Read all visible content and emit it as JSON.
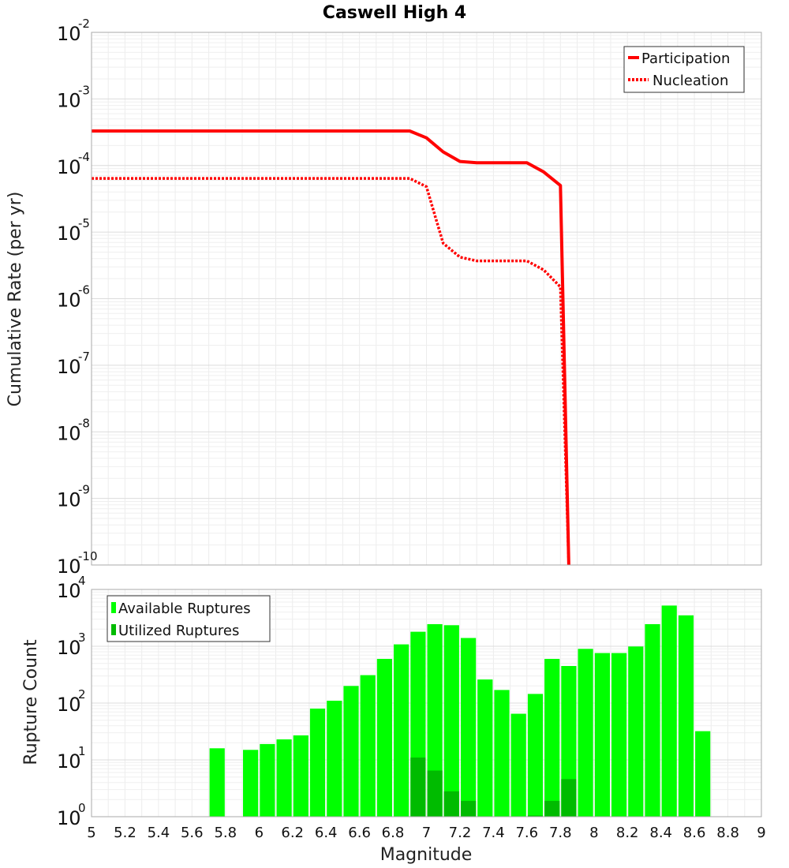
{
  "chart_data": [
    {
      "type": "line",
      "title": "Caswell High 4",
      "xlabel": "Magnitude",
      "ylabel": "Cumulative Rate (per yr)",
      "yscale": "log",
      "xlim": [
        5,
        9
      ],
      "ylim_exponents": [
        -10,
        -2
      ],
      "yticks": [
        {
          "base": "10",
          "exp": "-2"
        },
        {
          "base": "10",
          "exp": "-3"
        },
        {
          "base": "10",
          "exp": "-4"
        },
        {
          "base": "10",
          "exp": "-5"
        },
        {
          "base": "10",
          "exp": "-6"
        },
        {
          "base": "10",
          "exp": "-7"
        },
        {
          "base": "10",
          "exp": "-8"
        },
        {
          "base": "10",
          "exp": "-9"
        },
        {
          "base": "10",
          "exp": "-10"
        }
      ],
      "legend": [
        "Participation",
        "Nucleation"
      ],
      "legend_position": "top-right",
      "colors": {
        "participation": "#ff0000",
        "nucleation": "#ff0000"
      },
      "series": [
        {
          "name": "Participation",
          "style": "solid",
          "x": [
            5.0,
            6.9,
            7.0,
            7.1,
            7.2,
            7.3,
            7.6,
            7.7,
            7.8,
            7.85
          ],
          "y": [
            0.00033,
            0.00033,
            0.00026,
            0.00016,
            0.000115,
            0.00011,
            0.00011,
            8e-05,
            5e-05,
            1e-10
          ]
        },
        {
          "name": "Nucleation",
          "style": "dotted",
          "x": [
            5.0,
            6.9,
            7.0,
            7.05,
            7.1,
            7.2,
            7.3,
            7.6,
            7.7,
            7.8,
            7.85
          ],
          "y": [
            6.4e-05,
            6.4e-05,
            4.8e-05,
            1.8e-05,
            6.8e-06,
            4.2e-06,
            3.7e-06,
            3.7e-06,
            2.7e-06,
            1.5e-06,
            1e-10
          ]
        }
      ]
    },
    {
      "type": "bar",
      "xlabel": "Magnitude",
      "ylabel": "Rupture Count",
      "yscale": "log",
      "xlim": [
        5,
        9
      ],
      "ylim_exponents": [
        0,
        4
      ],
      "yticks": [
        {
          "base": "10",
          "exp": "4"
        },
        {
          "base": "10",
          "exp": "3"
        },
        {
          "base": "10",
          "exp": "2"
        },
        {
          "base": "10",
          "exp": "1"
        },
        {
          "base": "10",
          "exp": "0"
        }
      ],
      "xticks": [
        "5",
        "5.2",
        "5.4",
        "5.6",
        "5.8",
        "6",
        "6.2",
        "6.4",
        "6.6",
        "6.8",
        "7",
        "7.2",
        "7.4",
        "7.6",
        "7.8",
        "8",
        "8.2",
        "8.4",
        "8.6",
        "8.8",
        "9"
      ],
      "legend": [
        "Available Ruptures",
        "Utilized Ruptures"
      ],
      "legend_position": "top-left",
      "colors": {
        "available": "#00ff00",
        "utilized": "#00bb00"
      },
      "bin_width": 0.1,
      "series": [
        {
          "name": "Available Ruptures",
          "x": [
            5.75,
            5.95,
            6.05,
            6.15,
            6.25,
            6.35,
            6.45,
            6.55,
            6.65,
            6.75,
            6.85,
            6.95,
            7.05,
            7.15,
            7.25,
            7.35,
            7.45,
            7.55,
            7.65,
            7.75,
            7.85,
            7.95,
            8.05,
            8.15,
            8.25,
            8.35,
            8.45,
            8.55,
            8.65
          ],
          "values": [
            16,
            15,
            19,
            23,
            27,
            80,
            110,
            200,
            310,
            600,
            1080,
            1800,
            2450,
            2350,
            1400,
            260,
            170,
            65,
            145,
            600,
            450,
            900,
            760,
            760,
            990,
            2450,
            5200,
            3500,
            32
          ]
        },
        {
          "name": "Utilized Ruptures",
          "x": [
            6.95,
            7.05,
            7.15,
            7.25,
            7.65,
            7.75,
            7.85
          ],
          "values": [
            11,
            6.5,
            2.8,
            1.9,
            1.05,
            1.9,
            4.6
          ]
        }
      ]
    }
  ]
}
